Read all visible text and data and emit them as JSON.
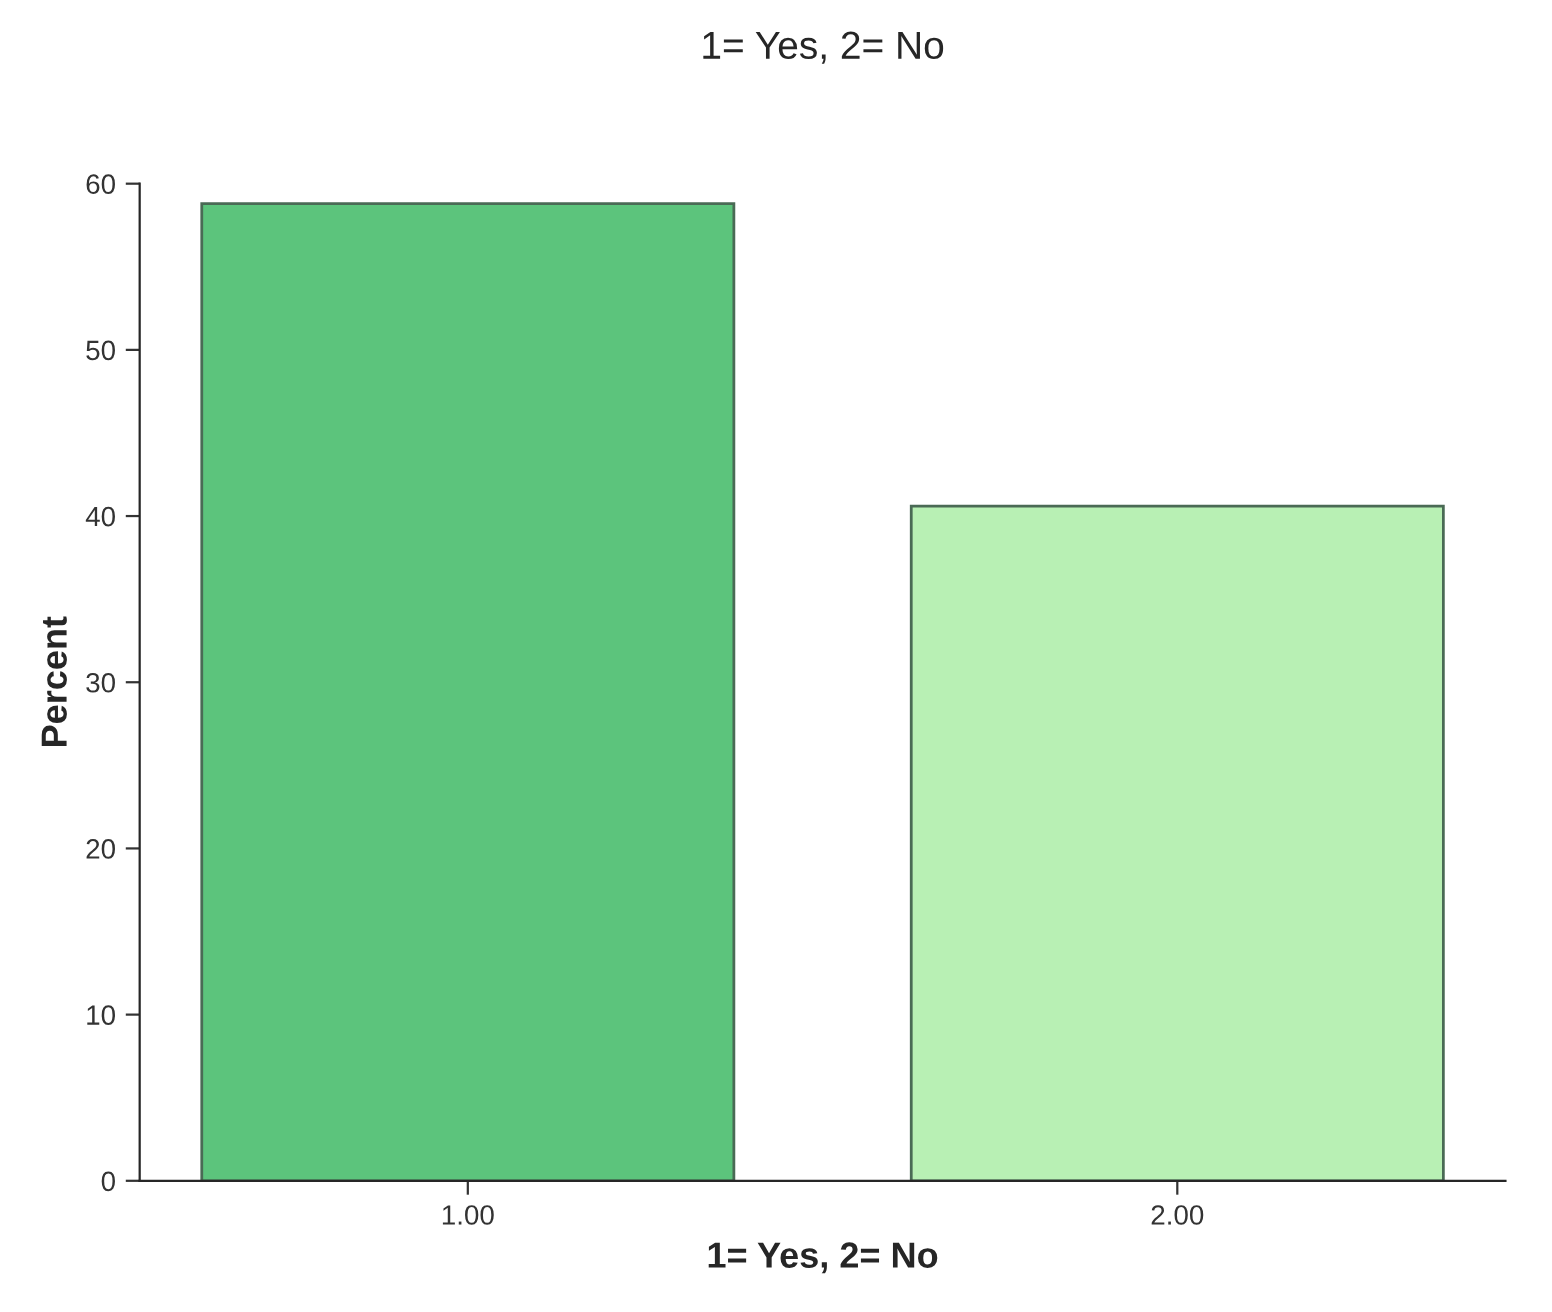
{
  "chart_data": {
    "type": "bar",
    "title": "1= Yes, 2= No",
    "xlabel": "1= Yes, 2= No",
    "ylabel": "Percent",
    "categories": [
      "1.00",
      "2.00"
    ],
    "values": [
      58.8,
      40.6
    ],
    "colors": [
      "#5cc47c",
      "#b8f0b4"
    ],
    "ylim": [
      0,
      60
    ],
    "yticks": [
      0,
      10,
      20,
      30,
      40,
      50,
      60
    ],
    "grid": false,
    "legend": false
  }
}
